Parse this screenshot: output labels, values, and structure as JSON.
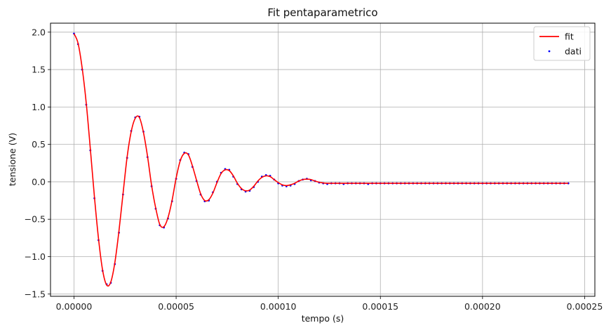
{
  "chart_data": {
    "type": "line",
    "title": "Fit pentaparametrico",
    "xlabel": "tempo (s)",
    "ylabel": "tensione (V)",
    "xlim": [
      -1.15e-05,
      0.000255
    ],
    "ylim": [
      -1.53,
      2.12
    ],
    "xticks": [
      0,
      5e-05,
      0.0001,
      0.00015,
      0.0002,
      0.00025
    ],
    "xtick_labels": [
      "0.00000",
      "0.00005",
      "0.00010",
      "0.00015",
      "0.00020",
      "0.00025"
    ],
    "yticks": [
      -1.5,
      -1.0,
      -0.5,
      0.0,
      0.5,
      1.0,
      1.5,
      2.0
    ],
    "ytick_labels": [
      "−1.5",
      "−1.0",
      "−0.5",
      "0.0",
      "0.5",
      "1.0",
      "1.5",
      "2.0"
    ],
    "grid": true,
    "legend_position": "top-right",
    "series": [
      {
        "name": "fit",
        "kind": "line",
        "color": "#ff0000",
        "x": [
          0.0,
          2e-06,
          4e-06,
          6e-06,
          8e-06,
          1e-05,
          1.2e-05,
          1.4e-05,
          1.6e-05,
          1.8e-05,
          2e-05,
          2.2e-05,
          2.4e-05,
          2.6e-05,
          2.8e-05,
          3e-05,
          3.2e-05,
          3.4e-05,
          3.6e-05,
          3.8e-05,
          4e-05,
          4.2e-05,
          4.4e-05,
          4.6e-05,
          4.8e-05,
          5e-05,
          5.2e-05,
          5.4e-05,
          5.6e-05,
          5.8e-05,
          6e-05,
          6.2e-05,
          6.4e-05,
          6.6e-05,
          6.8e-05,
          7e-05,
          7.2e-05,
          7.4e-05,
          7.6e-05,
          7.8e-05,
          8e-05,
          8.2e-05,
          8.4e-05,
          8.6e-05,
          8.8e-05,
          9e-05,
          9.2e-05,
          9.4e-05,
          9.6e-05,
          9.8e-05,
          0.0001,
          0.000102,
          0.000104,
          0.000106,
          0.000108,
          0.00011,
          0.000112,
          0.000114,
          0.000116,
          0.000118,
          0.00012,
          0.000122,
          0.000124,
          0.000126,
          0.000128,
          0.00013,
          0.000132,
          0.000134,
          0.000136,
          0.000138,
          0.00014,
          0.000142,
          0.000144,
          0.000146,
          0.000148,
          0.00015,
          0.000152,
          0.000154,
          0.000156,
          0.000158,
          0.00016,
          0.000162,
          0.000164,
          0.000166,
          0.000168,
          0.00017,
          0.000172,
          0.000174,
          0.000176,
          0.000178,
          0.00018,
          0.000182,
          0.000184,
          0.000186,
          0.000188,
          0.00019,
          0.000192,
          0.000194,
          0.000196,
          0.000198,
          0.0002,
          0.000202,
          0.000204,
          0.000206,
          0.000208,
          0.00021,
          0.000212,
          0.000214,
          0.000216,
          0.000218,
          0.00022,
          0.000222,
          0.000224,
          0.000226,
          0.000228,
          0.00023,
          0.000232,
          0.000234,
          0.000236,
          0.000238,
          0.00024,
          0.000242
        ],
        "y": [
          1.98,
          1.85,
          1.52,
          1.05,
          0.44,
          -0.2,
          -0.76,
          -1.18,
          -1.38,
          -1.34,
          -1.08,
          -0.66,
          -0.16,
          0.33,
          0.67,
          0.85,
          0.86,
          0.66,
          0.34,
          -0.05,
          -0.35,
          -0.57,
          -0.6,
          -0.48,
          -0.25,
          0.05,
          0.28,
          0.38,
          0.36,
          0.21,
          0.02,
          -0.16,
          -0.25,
          -0.24,
          -0.15,
          -0.01,
          0.11,
          0.16,
          0.15,
          0.08,
          -0.02,
          -0.09,
          -0.12,
          -0.11,
          -0.06,
          0.01,
          0.06,
          0.08,
          0.07,
          0.03,
          -0.01,
          -0.04,
          -0.05,
          -0.04,
          -0.02,
          0.01,
          0.03,
          0.035,
          0.03,
          0.01,
          -0.005,
          -0.015,
          -0.02,
          -0.02,
          -0.02,
          -0.02,
          -0.02,
          -0.02,
          -0.02,
          -0.02,
          -0.02,
          -0.02,
          -0.02,
          -0.02,
          -0.02,
          -0.02,
          -0.02,
          -0.02,
          -0.02,
          -0.02,
          -0.02,
          -0.02,
          -0.02,
          -0.02,
          -0.02,
          -0.02,
          -0.02,
          -0.02,
          -0.02,
          -0.02,
          -0.02,
          -0.02,
          -0.02,
          -0.02,
          -0.02,
          -0.02,
          -0.02,
          -0.02,
          -0.02,
          -0.02,
          -0.02,
          -0.02,
          -0.02,
          -0.02,
          -0.02,
          -0.02,
          -0.02,
          -0.02,
          -0.02,
          -0.02,
          -0.02,
          -0.02,
          -0.02,
          -0.02,
          -0.02,
          -0.02,
          -0.02,
          -0.02,
          -0.02,
          -0.02,
          -0.02,
          -0.02
        ]
      },
      {
        "name": "dati",
        "kind": "scatter",
        "color": "#0000ff",
        "x": [
          0.0,
          2e-06,
          4e-06,
          6e-06,
          8e-06,
          1e-05,
          1.2e-05,
          1.4e-05,
          1.6e-05,
          1.8e-05,
          2e-05,
          2.2e-05,
          2.4e-05,
          2.6e-05,
          2.8e-05,
          3e-05,
          3.2e-05,
          3.4e-05,
          3.6e-05,
          3.8e-05,
          4e-05,
          4.2e-05,
          4.4e-05,
          4.6e-05,
          4.8e-05,
          5e-05,
          5.2e-05,
          5.4e-05,
          5.6e-05,
          5.8e-05,
          6e-05,
          6.2e-05,
          6.4e-05,
          6.6e-05,
          6.8e-05,
          7e-05,
          7.2e-05,
          7.4e-05,
          7.6e-05,
          7.8e-05,
          8e-05,
          8.2e-05,
          8.4e-05,
          8.6e-05,
          8.8e-05,
          9e-05,
          9.2e-05,
          9.4e-05,
          9.6e-05,
          9.8e-05,
          0.0001,
          0.000102,
          0.000104,
          0.000106,
          0.000108,
          0.00011,
          0.000112,
          0.000114,
          0.000116,
          0.000118,
          0.00012,
          0.000122,
          0.000124,
          0.000126,
          0.000128,
          0.00013,
          0.000132,
          0.000134,
          0.000136,
          0.000138,
          0.00014,
          0.000142,
          0.000144,
          0.000146,
          0.000148,
          0.00015,
          0.000152,
          0.000154,
          0.000156,
          0.000158,
          0.00016,
          0.000162,
          0.000164,
          0.000166,
          0.000168,
          0.00017,
          0.000172,
          0.000174,
          0.000176,
          0.000178,
          0.00018,
          0.000182,
          0.000184,
          0.000186,
          0.000188,
          0.00019,
          0.000192,
          0.000194,
          0.000196,
          0.000198,
          0.0002,
          0.000202,
          0.000204,
          0.000206,
          0.000208,
          0.00021,
          0.000212,
          0.000214,
          0.000216,
          0.000218,
          0.00022,
          0.000222,
          0.000224,
          0.000226,
          0.000228,
          0.00023,
          0.000232,
          0.000234,
          0.000236,
          0.000238,
          0.00024,
          0.000242
        ],
        "y": [
          1.98,
          1.84,
          1.5,
          1.03,
          0.42,
          -0.22,
          -0.78,
          -1.19,
          -1.37,
          -1.35,
          -1.1,
          -0.68,
          -0.17,
          0.32,
          0.68,
          0.86,
          0.87,
          0.67,
          0.33,
          -0.06,
          -0.36,
          -0.58,
          -0.61,
          -0.49,
          -0.26,
          0.04,
          0.29,
          0.39,
          0.37,
          0.2,
          0.01,
          -0.17,
          -0.26,
          -0.25,
          -0.14,
          0.0,
          0.12,
          0.17,
          0.16,
          0.07,
          -0.03,
          -0.1,
          -0.13,
          -0.12,
          -0.07,
          0.0,
          0.07,
          0.09,
          0.08,
          0.03,
          -0.02,
          -0.05,
          -0.06,
          -0.05,
          -0.03,
          0.01,
          0.03,
          0.04,
          0.02,
          0.01,
          -0.01,
          -0.02,
          -0.03,
          -0.02,
          -0.02,
          -0.02,
          -0.03,
          -0.02,
          -0.02,
          -0.02,
          -0.02,
          -0.02,
          -0.03,
          -0.02,
          -0.02,
          -0.02,
          -0.02,
          -0.02,
          -0.02,
          -0.02,
          -0.02,
          -0.02,
          -0.02,
          -0.02,
          -0.02,
          -0.02,
          -0.02,
          -0.02,
          -0.02,
          -0.02,
          -0.02,
          -0.02,
          -0.02,
          -0.02,
          -0.02,
          -0.02,
          -0.02,
          -0.02,
          -0.02,
          -0.02,
          -0.02,
          -0.02,
          -0.02,
          -0.02,
          -0.02,
          -0.02,
          -0.02,
          -0.02,
          -0.02,
          -0.02,
          -0.02,
          -0.02,
          -0.02,
          -0.02,
          -0.02,
          -0.02,
          -0.02,
          -0.02,
          -0.02,
          -0.02,
          -0.02,
          -0.02
        ]
      }
    ]
  }
}
